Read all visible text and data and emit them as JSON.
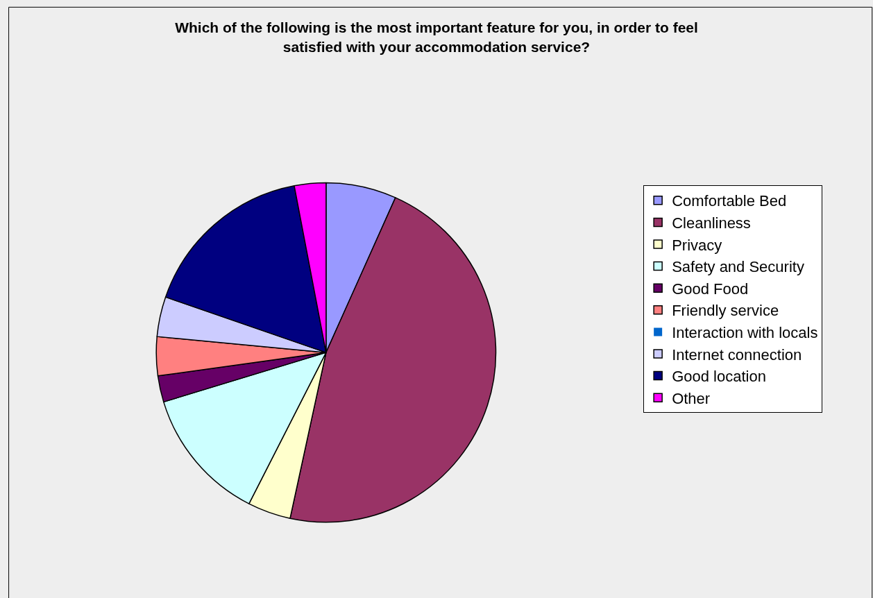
{
  "chart_data": {
    "type": "pie",
    "title": "Which of the following is the most important feature for you, in order to feel satisfied with your accommodation service?",
    "categories": [
      "Comfortable Bed",
      "Cleanliness",
      "Privacy",
      "Safety and Security",
      "Good Food",
      "Friendly service",
      "Interaction with locals",
      "Internet connection",
      "Good location",
      "Other"
    ],
    "values": [
      6.7,
      46.7,
      4.1,
      12.8,
      2.5,
      3.7,
      0,
      3.8,
      16.7,
      3.0
    ],
    "colors": [
      "#9999ff",
      "#993366",
      "#ffffcc",
      "#ccffff",
      "#660066",
      "#ff8080",
      "#0066cc",
      "#ccccff",
      "#000080",
      "#ff00ff"
    ],
    "legend": "right"
  }
}
